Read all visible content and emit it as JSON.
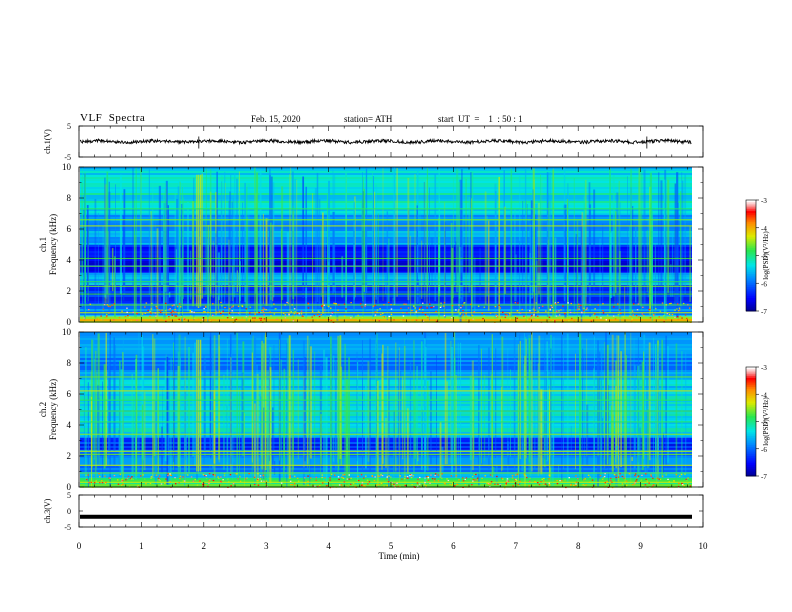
{
  "header": {
    "title": "VLF  Spectra",
    "date": "Feb. 15, 2020",
    "station": "station= ATH",
    "start": "start  UT  =    1  : 50 : 1"
  },
  "chart_data": [
    {
      "type": "line",
      "name": "ch1-waveform",
      "ylabel": "ch.1(V)",
      "ylim": [
        -5,
        5
      ],
      "yticks": [
        "5",
        "-5"
      ],
      "xlim": [
        0,
        10
      ],
      "approx_level_V": 0,
      "color": "#000000"
    },
    {
      "type": "heatmap",
      "name": "ch1-spectrogram",
      "ylabel": "ch.1\nFrequency  (kHz)",
      "ylim": [
        0,
        10
      ],
      "yticks": [
        "0",
        "2",
        "4",
        "6",
        "8",
        "10"
      ],
      "xlim": [
        0,
        9.8
      ],
      "colorbar": {
        "label": "log(PSD)(V²/Hz)",
        "range": [
          -7,
          -3
        ],
        "ticks": [
          "-3",
          "-4",
          "-5",
          "-6",
          "-7"
        ]
      },
      "dominant_bands": [
        {
          "from_kHz": 0,
          "to_kHz": 0.4,
          "level": -4.2
        },
        {
          "from_kHz": 0.4,
          "to_kHz": 1.2,
          "level": -5.8
        },
        {
          "from_kHz": 1.2,
          "to_kHz": 2.4,
          "level": -6.2
        },
        {
          "from_kHz": 2.4,
          "to_kHz": 3.2,
          "level": -5.6
        },
        {
          "from_kHz": 3.2,
          "to_kHz": 5.0,
          "level": -6.5
        },
        {
          "from_kHz": 5.0,
          "to_kHz": 7.0,
          "level": -5.7
        },
        {
          "from_kHz": 7.0,
          "to_kHz": 10.0,
          "level": -5.3
        }
      ]
    },
    {
      "type": "heatmap",
      "name": "ch2-spectrogram",
      "ylabel": "ch.2\nFrequency  (kHz)",
      "ylim": [
        0,
        10
      ],
      "yticks": [
        "0",
        "2",
        "4",
        "6",
        "8",
        "10"
      ],
      "xlim": [
        0,
        9.8
      ],
      "colorbar": {
        "label": "log(PSD)(V²/Hz)",
        "range": [
          -7,
          -3
        ],
        "ticks": [
          "-3",
          "-4",
          "-5",
          "-6",
          "-7"
        ]
      },
      "dominant_bands": [
        {
          "from_kHz": 0,
          "to_kHz": 0.6,
          "level": -4.8
        },
        {
          "from_kHz": 0.6,
          "to_kHz": 2.4,
          "level": -5.8
        },
        {
          "from_kHz": 2.4,
          "to_kHz": 3.2,
          "level": -6.3
        },
        {
          "from_kHz": 3.2,
          "to_kHz": 7.0,
          "level": -5.4
        },
        {
          "from_kHz": 7.0,
          "to_kHz": 10.0,
          "level": -5.8
        }
      ]
    },
    {
      "type": "line",
      "name": "ch3-waveform",
      "ylabel": "ch.3(V)",
      "ylim": [
        -5,
        5
      ],
      "yticks": [
        "5",
        "0",
        "-5"
      ],
      "xlim": [
        0,
        10
      ],
      "approx_level_V": -1.8,
      "color": "#000000"
    }
  ],
  "xaxis": {
    "label": "Time  (min)",
    "ticks": [
      "0",
      "1",
      "2",
      "3",
      "4",
      "5",
      "6",
      "7",
      "8",
      "9",
      "10"
    ]
  }
}
